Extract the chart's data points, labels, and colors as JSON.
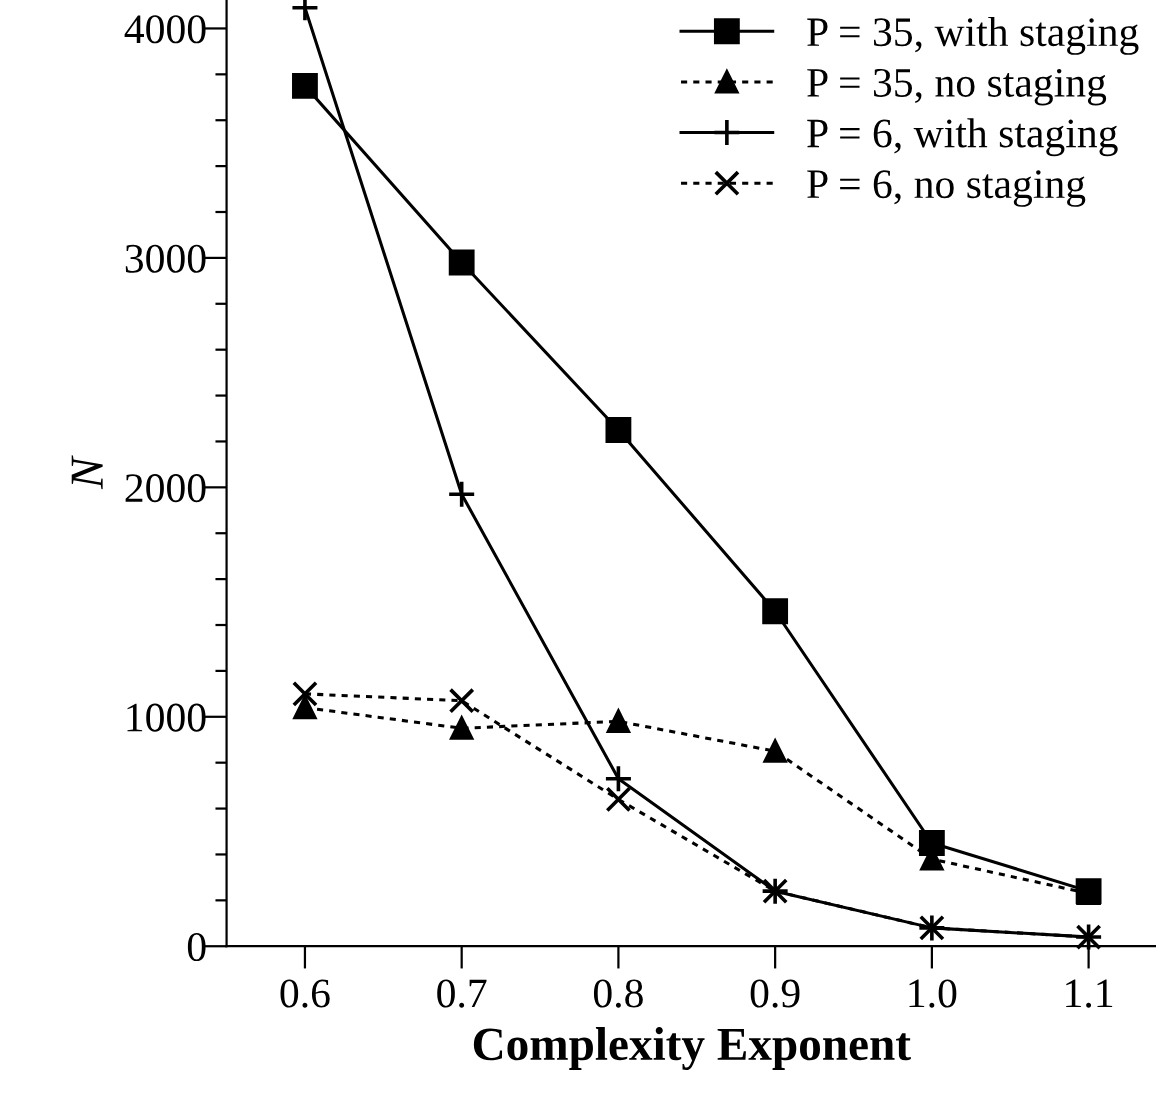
{
  "chart_data": {
    "type": "line",
    "xlabel": "Complexity Exponent",
    "ylabel": "N",
    "x": [
      0.6,
      0.7,
      0.8,
      0.9,
      1.0,
      1.1
    ],
    "series": [
      {
        "name": "P = 35, with staging",
        "color": "#000000",
        "marker": "square",
        "line_style": "solid",
        "values": [
          3750,
          2980,
          2250,
          1460,
          450,
          240
        ]
      },
      {
        "name": "P = 35, no staging",
        "color": "#000000",
        "marker": "triangle",
        "line_style": "dotted",
        "values": [
          1040,
          950,
          980,
          850,
          380,
          230
        ]
      },
      {
        "name": "P = 6, with staging",
        "color": "#000000",
        "marker": "plus",
        "line_style": "solid",
        "values": [
          4090,
          1970,
          730,
          240,
          80,
          40
        ]
      },
      {
        "name": "P = 6, no staging",
        "color": "#000000",
        "marker": "cross",
        "line_style": "dotted",
        "values": [
          1100,
          1070,
          640,
          240,
          80,
          40
        ]
      }
    ],
    "xlim": [
      0.55,
      1.143
    ],
    "ylim": [
      0,
      4124
    ],
    "xticks": [
      {
        "value": 0.6,
        "label": "0.6"
      },
      {
        "value": 0.7,
        "label": "0.7"
      },
      {
        "value": 0.8,
        "label": "0.8"
      },
      {
        "value": 0.9,
        "label": "0.9"
      },
      {
        "value": 1.0,
        "label": "1.0"
      },
      {
        "value": 1.1,
        "label": "1.1"
      }
    ],
    "yticks": [
      0,
      {
        "value": 200,
        "label": null
      },
      {
        "value": 400,
        "label": null
      },
      {
        "value": 600,
        "label": null
      },
      {
        "value": 800,
        "label": null
      },
      1000,
      {
        "value": 1200,
        "label": null
      },
      {
        "value": 1400,
        "label": null
      },
      {
        "value": 1600,
        "label": null
      },
      {
        "value": 1800,
        "label": null
      },
      2000,
      {
        "value": 2200,
        "label": null
      },
      {
        "value": 2400,
        "label": null
      },
      {
        "value": 2600,
        "label": null
      },
      {
        "value": 2800,
        "label": null
      },
      3000,
      {
        "value": 3200,
        "label": null
      },
      {
        "value": 3400,
        "label": null
      },
      {
        "value": 3600,
        "label": null
      },
      {
        "value": 3800,
        "label": null
      },
      4000
    ],
    "grid": false,
    "legend": "top right"
  }
}
